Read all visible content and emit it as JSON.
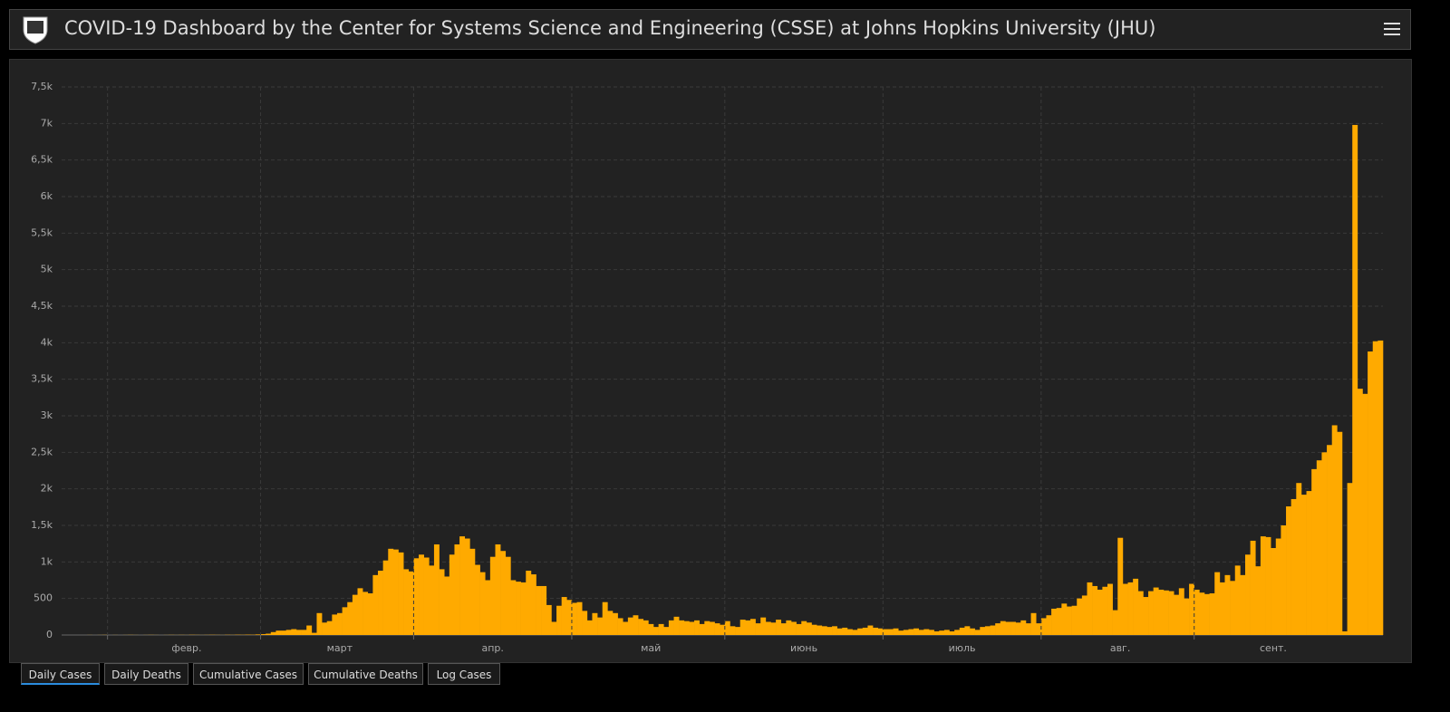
{
  "header": {
    "title": "COVID-19 Dashboard by the Center for Systems Science and Engineering (CSSE) at Johns Hopkins University (JHU)"
  },
  "tabs": [
    "Daily Cases",
    "Daily Deaths",
    "Cumulative Cases",
    "Cumulative Deaths",
    "Log Cases"
  ],
  "chart_data": {
    "type": "bar",
    "color": "#ffaa00",
    "grid": true,
    "ylim": [
      0,
      7500
    ],
    "yticks": [
      0,
      500,
      {
        "value": 1000,
        "label": "1k"
      },
      {
        "value": 1500,
        "label": "1,5k"
      },
      {
        "value": 2000,
        "label": "2k"
      },
      {
        "value": 2500,
        "label": "2,5k"
      },
      {
        "value": 3000,
        "label": "3k"
      },
      {
        "value": 3500,
        "label": "3,5k"
      },
      {
        "value": 4000,
        "label": "4k"
      },
      {
        "value": 4500,
        "label": "4,5k"
      },
      {
        "value": 5000,
        "label": "5k"
      },
      {
        "value": 5500,
        "label": "5,5k"
      },
      {
        "value": 6000,
        "label": "6k"
      },
      {
        "value": 6500,
        "label": "6,5k"
      },
      {
        "value": 7000,
        "label": "7k"
      },
      {
        "value": 7500,
        "label": "7,5k"
      }
    ],
    "categories": [
      null,
      null,
      null,
      null,
      null,
      null,
      null,
      null,
      null,
      null,
      null,
      null,
      null,
      null,
      null,
      null,
      null,
      null,
      null,
      null,
      null,
      null,
      null,
      null,
      "февр.",
      null,
      null,
      null,
      null,
      null,
      null,
      null,
      null,
      null,
      null,
      null,
      null,
      null,
      null,
      null,
      null,
      null,
      null,
      null,
      null,
      null,
      null,
      null,
      null,
      null,
      null,
      null,
      null,
      null,
      "март",
      null,
      null,
      null,
      null,
      null,
      null,
      null,
      null,
      null,
      null,
      null,
      null,
      null,
      null,
      null,
      null,
      null,
      null,
      null,
      null,
      null,
      null,
      null,
      null,
      null,
      null,
      null,
      null,
      null,
      "апр.",
      null,
      null,
      null,
      null,
      null,
      null,
      null,
      null,
      null,
      null,
      null,
      null,
      null,
      null,
      null,
      null,
      null,
      null,
      null,
      null,
      null,
      null,
      null,
      null,
      null,
      null,
      null,
      null,
      null,
      null,
      "май",
      null,
      null,
      null,
      null,
      null,
      null,
      null,
      null,
      null,
      null,
      null,
      null,
      null,
      null,
      null,
      null,
      null,
      null,
      null,
      null,
      null,
      null,
      null,
      null,
      null,
      null,
      null,
      null,
      null,
      "июнь",
      null,
      null,
      null,
      null,
      null,
      null,
      null,
      null,
      null,
      null,
      null,
      null,
      null,
      null,
      null,
      null,
      null,
      null,
      null,
      null,
      null,
      null,
      null,
      null,
      null,
      null,
      null,
      null,
      null,
      null,
      "июль",
      null,
      null,
      null,
      null,
      null,
      null,
      null,
      null,
      null,
      null,
      null,
      null,
      null,
      null,
      null,
      null,
      null,
      null,
      null,
      null,
      null,
      null,
      null,
      null,
      null,
      null,
      null,
      null,
      null,
      null,
      "авг.",
      null,
      null,
      null,
      null,
      null,
      null,
      null,
      null,
      null,
      null,
      null,
      null,
      null,
      null,
      null,
      null,
      null,
      null,
      null,
      null,
      null,
      null,
      null,
      null,
      null,
      null,
      null,
      null,
      null,
      "сент.",
      null,
      null,
      null,
      null,
      null,
      null,
      null,
      null,
      null,
      null,
      null,
      null,
      null,
      null,
      null,
      null,
      null,
      null,
      null,
      null,
      null
    ],
    "values": [
      0,
      0,
      0,
      0,
      0,
      1,
      0,
      1,
      2,
      0,
      1,
      0,
      1,
      2,
      1,
      0,
      1,
      2,
      1,
      0,
      1,
      2,
      1,
      2,
      1,
      3,
      2,
      1,
      2,
      3,
      2,
      1,
      3,
      2,
      4,
      3,
      5,
      4,
      8,
      12,
      18,
      40,
      60,
      60,
      70,
      80,
      70,
      70,
      130,
      30,
      300,
      170,
      190,
      280,
      300,
      380,
      450,
      550,
      640,
      590,
      570,
      820,
      880,
      1020,
      1180,
      1170,
      1130,
      900,
      870,
      1050,
      1100,
      1060,
      950,
      1240,
      900,
      800,
      1100,
      1240,
      1350,
      1320,
      1180,
      960,
      860,
      750,
      1070,
      1240,
      1150,
      1070,
      750,
      730,
      720,
      880,
      830,
      670,
      670,
      410,
      180,
      400,
      520,
      480,
      440,
      450,
      330,
      200,
      300,
      240,
      450,
      330,
      300,
      230,
      180,
      240,
      270,
      220,
      200,
      150,
      110,
      150,
      110,
      200,
      250,
      200,
      190,
      180,
      200,
      150,
      190,
      180,
      160,
      140,
      190,
      120,
      110,
      210,
      200,
      220,
      160,
      240,
      180,
      170,
      210,
      160,
      200,
      180,
      150,
      190,
      170,
      140,
      130,
      120,
      110,
      120,
      90,
      100,
      80,
      70,
      90,
      100,
      130,
      100,
      90,
      80,
      80,
      90,
      60,
      70,
      80,
      90,
      70,
      80,
      70,
      50,
      60,
      70,
      50,
      70,
      100,
      120,
      90,
      70,
      110,
      120,
      130,
      160,
      190,
      180,
      180,
      170,
      200,
      160,
      300,
      160,
      230,
      270,
      360,
      370,
      430,
      390,
      400,
      500,
      540,
      720,
      670,
      620,
      660,
      700,
      340,
      1330,
      700,
      720,
      770,
      600,
      520,
      600,
      650,
      620,
      610,
      600,
      550,
      640,
      500,
      700,
      620,
      580,
      560,
      570,
      860,
      720,
      820,
      740,
      950,
      820,
      1100,
      1290,
      940,
      1350,
      1340,
      1190,
      1320,
      1500,
      1760,
      1860,
      2080,
      1920,
      1970,
      2270,
      2390,
      2500,
      2600,
      2870,
      2780,
      50,
      2080,
      6980,
      3370,
      3300,
      3880,
      4020,
      4030
    ]
  }
}
